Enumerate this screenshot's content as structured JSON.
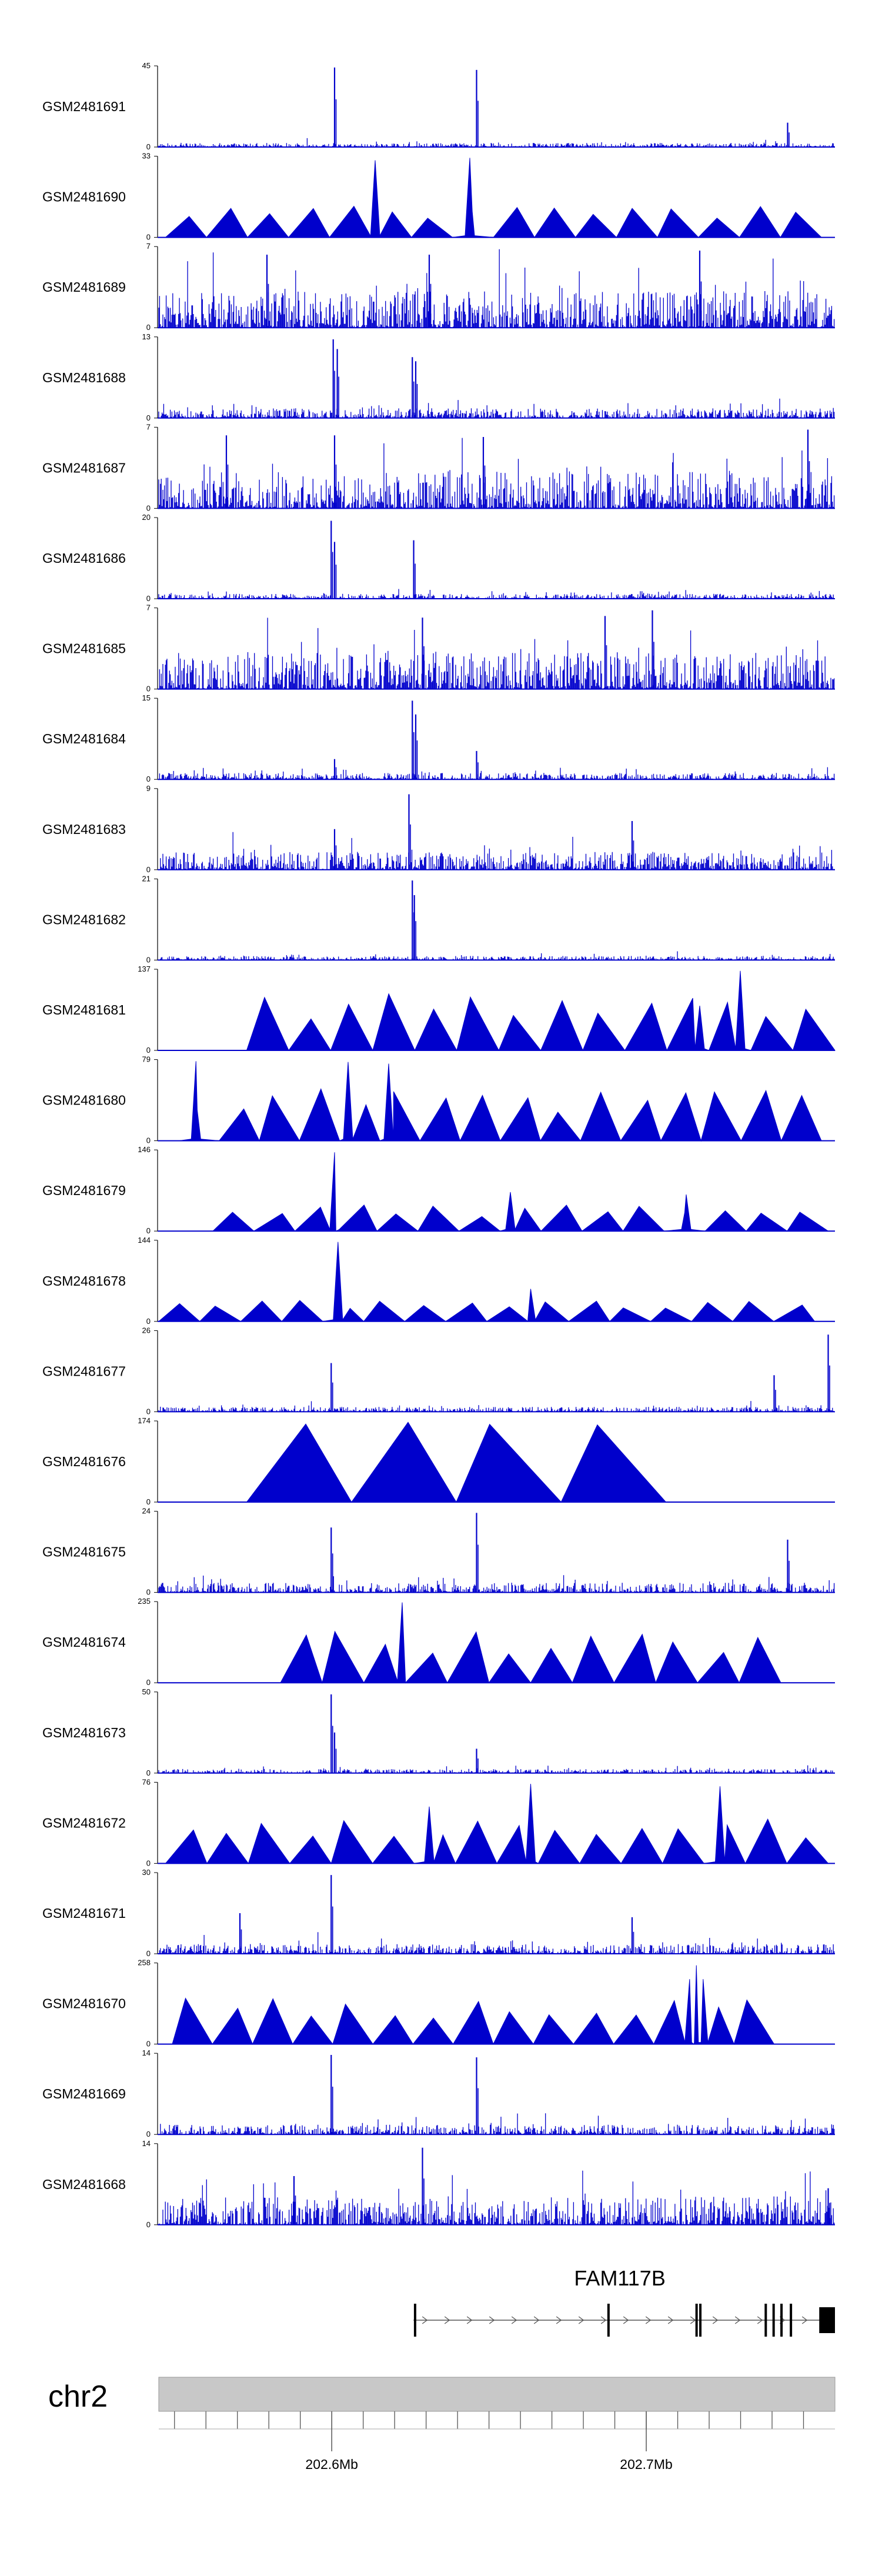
{
  "chart_data": {
    "type": "area",
    "title": "",
    "colors": {
      "signal": "#0000cc",
      "axis": "#000000",
      "ideogram": "#c8c8c8",
      "gene": "#000000"
    },
    "genomic_axis": {
      "chromosome": "chr2",
      "xlim": [
        202545000,
        202760000
      ],
      "tick_labels": [
        {
          "pos": 202600000,
          "label": "202.6Mb"
        },
        {
          "pos": 202700000,
          "label": "202.7Mb"
        }
      ],
      "minor_ticks": [
        202550000,
        202560000,
        202570000,
        202580000,
        202590000,
        202600000,
        202610000,
        202620000,
        202630000,
        202640000,
        202650000,
        202660000,
        202670000,
        202680000,
        202690000,
        202700000,
        202710000,
        202720000,
        202730000,
        202740000,
        202750000
      ]
    },
    "gene": {
      "name": "FAM117B",
      "strand": "+",
      "start": 202626000,
      "end": 202760000,
      "exons": [
        202626500,
        202688000,
        202716000,
        202717200,
        202738000,
        202740500,
        202743000,
        202746000,
        202755000
      ]
    },
    "tracks": [
      {
        "name": "GSM2481691",
        "ymax": "45",
        "style": "bars",
        "level": 0.05,
        "peaks": [
          [
            0.26,
            0.98
          ],
          [
            0.47,
            0.95
          ],
          [
            0.93,
            0.3
          ]
        ]
      },
      {
        "name": "GSM2481690",
        "ymax": "33",
        "style": "triangles",
        "level": 0.3,
        "start": 0.01,
        "end": 0.98,
        "peaks": [
          [
            0.32,
            0.95
          ],
          [
            0.46,
            0.98
          ]
        ]
      },
      {
        "name": "GSM2481689",
        "ymax": "7",
        "style": "bars",
        "level": 0.45,
        "peaks": [
          [
            0.16,
            0.9
          ],
          [
            0.4,
            0.9
          ],
          [
            0.8,
            0.95
          ]
        ]
      },
      {
        "name": "GSM2481688",
        "ymax": "13",
        "style": "bars",
        "level": 0.12,
        "peaks": [
          [
            0.258,
            0.97
          ],
          [
            0.264,
            0.85
          ],
          [
            0.375,
            0.75
          ],
          [
            0.38,
            0.7
          ]
        ]
      },
      {
        "name": "GSM2481687",
        "ymax": "7",
        "style": "bars",
        "level": 0.45,
        "peaks": [
          [
            0.1,
            0.9
          ],
          [
            0.26,
            0.9
          ],
          [
            0.48,
            0.88
          ],
          [
            0.96,
            0.97
          ]
        ]
      },
      {
        "name": "GSM2481686",
        "ymax": "20",
        "style": "bars",
        "level": 0.06,
        "peaks": [
          [
            0.255,
            0.96
          ],
          [
            0.26,
            0.7
          ],
          [
            0.377,
            0.72
          ]
        ]
      },
      {
        "name": "GSM2481685",
        "ymax": "7",
        "style": "bars",
        "level": 0.45,
        "peaks": [
          [
            0.39,
            0.88
          ],
          [
            0.66,
            0.9
          ],
          [
            0.73,
            0.97
          ]
        ]
      },
      {
        "name": "GSM2481684",
        "ymax": "15",
        "style": "bars",
        "level": 0.08,
        "peaks": [
          [
            0.375,
            0.97
          ],
          [
            0.38,
            0.8
          ],
          [
            0.47,
            0.35
          ],
          [
            0.26,
            0.25
          ]
        ]
      },
      {
        "name": "GSM2481683",
        "ymax": "9",
        "style": "bars",
        "level": 0.22,
        "peaks": [
          [
            0.37,
            0.93
          ],
          [
            0.26,
            0.5
          ],
          [
            0.7,
            0.6
          ]
        ]
      },
      {
        "name": "GSM2481682",
        "ymax": "21",
        "style": "bars",
        "level": 0.05,
        "peaks": [
          [
            0.375,
            0.98
          ],
          [
            0.378,
            0.8
          ]
        ]
      },
      {
        "name": "GSM2481681",
        "ymax": "137",
        "style": "triangles",
        "level": 0.55,
        "start": 0.13,
        "end": 1.0,
        "peaks": [
          [
            0.86,
            0.98
          ],
          [
            0.8,
            0.55
          ]
        ]
      },
      {
        "name": "GSM2481680",
        "ymax": "79",
        "style": "triangles",
        "level": 0.5,
        "start": 0.03,
        "end": 0.98,
        "peaks": [
          [
            0.055,
            0.98
          ],
          [
            0.28,
            0.97
          ],
          [
            0.34,
            0.95
          ]
        ]
      },
      {
        "name": "GSM2481679",
        "ymax": "146",
        "style": "triangles",
        "level": 0.25,
        "start": 0.08,
        "end": 0.99,
        "peaks": [
          [
            0.26,
            0.97
          ],
          [
            0.52,
            0.48
          ],
          [
            0.78,
            0.45
          ]
        ]
      },
      {
        "name": "GSM2481678",
        "ymax": "144",
        "style": "triangles",
        "level": 0.2,
        "start": 0.0,
        "end": 0.97,
        "peaks": [
          [
            0.265,
            0.98
          ],
          [
            0.55,
            0.4
          ]
        ]
      },
      {
        "name": "GSM2481677",
        "ymax": "26",
        "style": "bars",
        "level": 0.06,
        "peaks": [
          [
            0.255,
            0.6
          ],
          [
            0.99,
            0.95
          ],
          [
            0.91,
            0.45
          ]
        ]
      },
      {
        "name": "GSM2481676",
        "ymax": "174",
        "style": "triangles",
        "level": 1.0,
        "start": 0.13,
        "end": 0.75,
        "peaks": []
      },
      {
        "name": "GSM2481675",
        "ymax": "24",
        "style": "bars",
        "level": 0.12,
        "peaks": [
          [
            0.255,
            0.8
          ],
          [
            0.47,
            0.98
          ],
          [
            0.93,
            0.65
          ]
        ]
      },
      {
        "name": "GSM2481674",
        "ymax": "235",
        "style": "triangles",
        "level": 0.5,
        "start": 0.18,
        "end": 0.92,
        "peaks": [
          [
            0.36,
            0.99
          ]
        ]
      },
      {
        "name": "GSM2481673",
        "ymax": "50",
        "style": "bars",
        "level": 0.05,
        "peaks": [
          [
            0.255,
            0.97
          ],
          [
            0.26,
            0.5
          ],
          [
            0.47,
            0.3
          ]
        ]
      },
      {
        "name": "GSM2481672",
        "ymax": "76",
        "style": "triangles",
        "level": 0.45,
        "start": 0.01,
        "end": 0.99,
        "peaks": [
          [
            0.55,
            0.98
          ],
          [
            0.83,
            0.95
          ],
          [
            0.4,
            0.7
          ]
        ]
      },
      {
        "name": "GSM2481671",
        "ymax": "30",
        "style": "bars",
        "level": 0.12,
        "peaks": [
          [
            0.255,
            0.97
          ],
          [
            0.12,
            0.5
          ],
          [
            0.7,
            0.45
          ]
        ]
      },
      {
        "name": "GSM2481670",
        "ymax": "258",
        "style": "triangles",
        "level": 0.45,
        "start": 0.02,
        "end": 0.91,
        "peaks": [
          [
            0.795,
            0.97
          ],
          [
            0.785,
            0.8
          ],
          [
            0.805,
            0.8
          ]
        ]
      },
      {
        "name": "GSM2481669",
        "ymax": "14",
        "style": "bars",
        "level": 0.12,
        "peaks": [
          [
            0.255,
            0.98
          ],
          [
            0.47,
            0.95
          ]
        ]
      },
      {
        "name": "GSM2481668",
        "ymax": "14",
        "style": "bars",
        "level": 0.35,
        "peaks": [
          [
            0.39,
            0.95
          ],
          [
            0.2,
            0.6
          ],
          [
            0.99,
            0.45
          ]
        ]
      }
    ]
  }
}
